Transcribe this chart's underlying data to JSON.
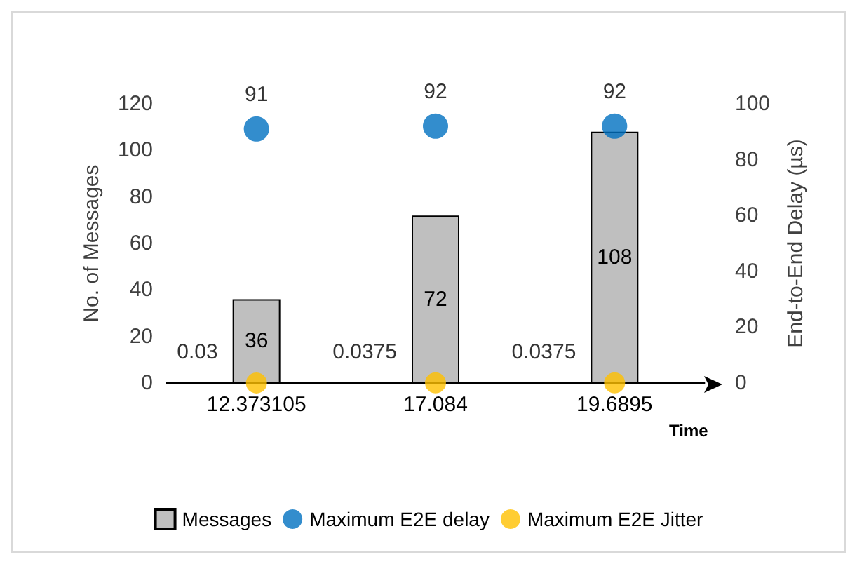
{
  "chart_data": {
    "type": "bar",
    "xlabel": "Time",
    "ylabel": "No. of Messages",
    "y2label": "End-to-End Delay (µs)",
    "categories": [
      "12.373105",
      "17.084",
      "19.6895"
    ],
    "series": [
      {
        "name": "Messages",
        "color": "#bfbfbf",
        "values": [
          36,
          72,
          108
        ]
      },
      {
        "name": "Maximum E2E delay",
        "type": "scatter",
        "axis": "y2",
        "color": "#0070c0",
        "values": [
          91,
          92,
          92
        ]
      },
      {
        "name": "Maximum E2E Jitter",
        "type": "scatter",
        "axis": "y2",
        "color": "#ffc000",
        "values": [
          0.03,
          0.0375,
          0.0375
        ]
      }
    ],
    "ylim": [
      0,
      120
    ],
    "yticks": [
      0,
      20,
      40,
      60,
      80,
      100,
      120
    ],
    "y2lim": [
      0,
      100
    ],
    "y2ticks": [
      0,
      20,
      40,
      60,
      80,
      100
    ],
    "data_labels": true,
    "grid": false,
    "legend": "bottom",
    "marker": "circle"
  }
}
